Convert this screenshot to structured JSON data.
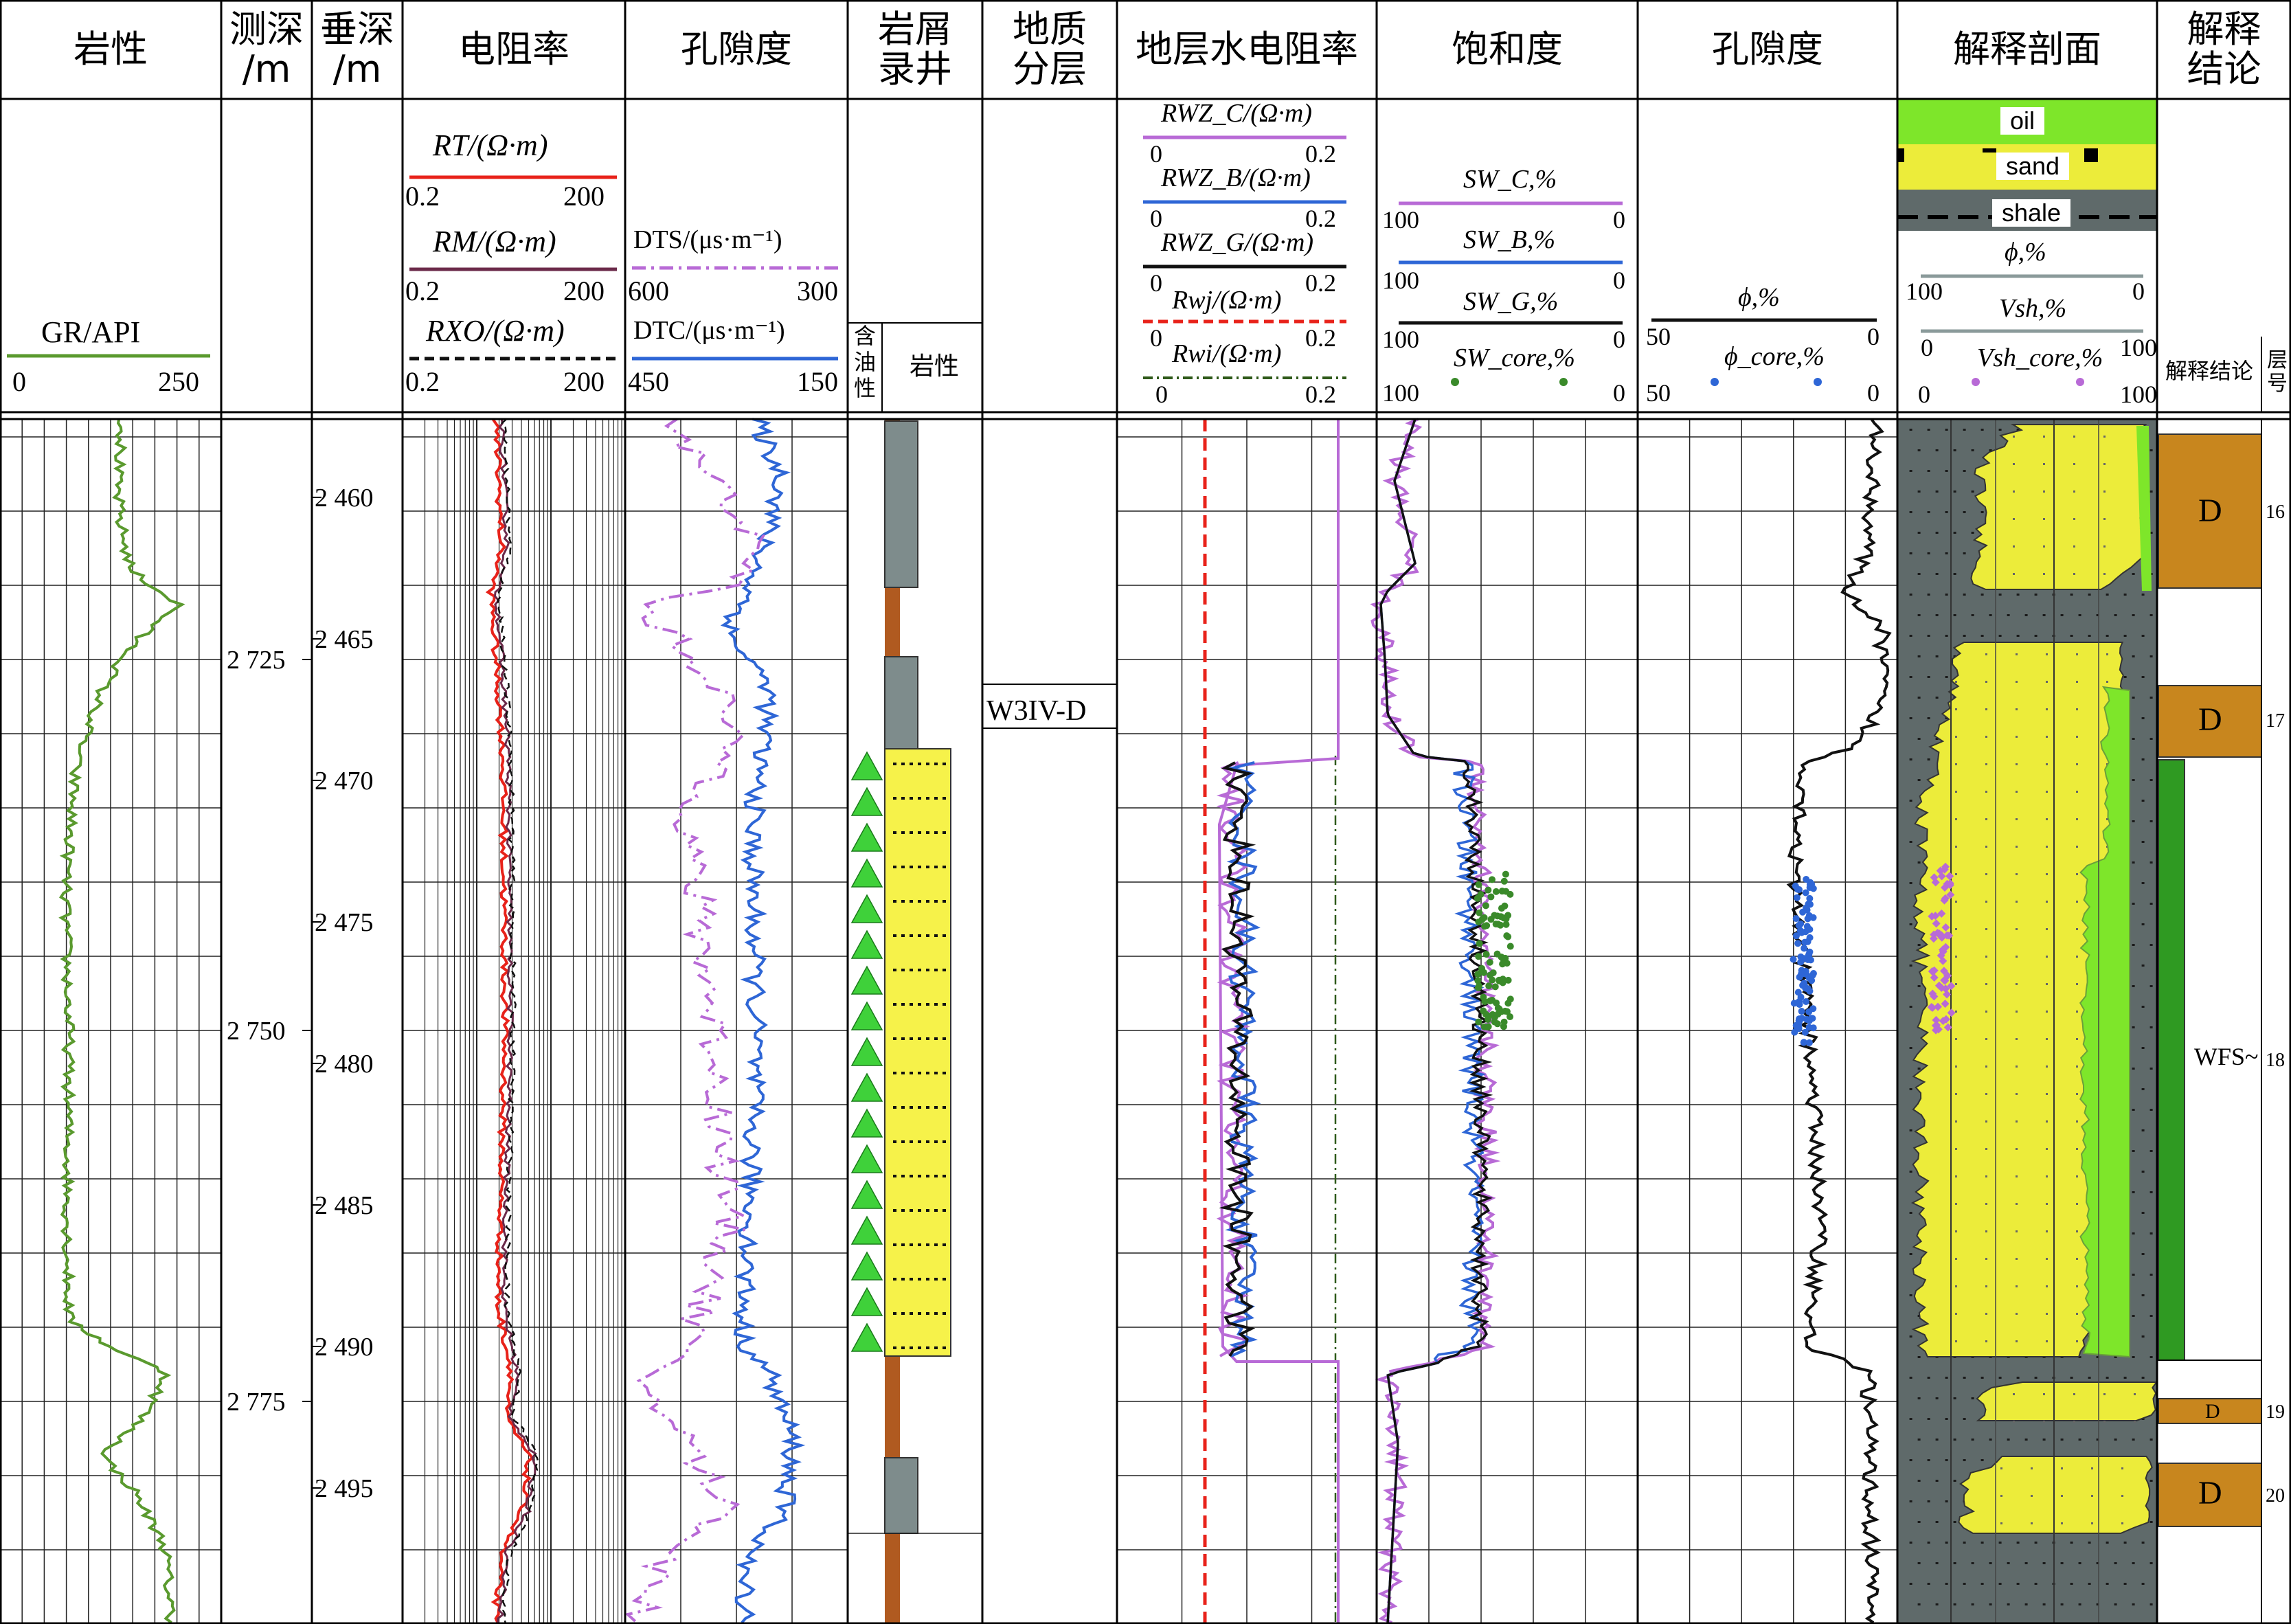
{
  "headers": {
    "lithology_gr": "岩性",
    "md": "测深\n/m",
    "tvd": "垂深\n/m",
    "resistivity": "电阻率",
    "porosity_sonic": "孔隙度",
    "cuttings": "岩屑\n录井",
    "geo_layer": "地质\n分层",
    "water_res": "地层水电阻率",
    "saturation": "饱和度",
    "porosity": "孔隙度",
    "profile": "解释剖面",
    "conclusion": "解释\n结论"
  },
  "curves": {
    "gr": {
      "label": "GR/API",
      "min": "0",
      "max": "250",
      "color": "#5a9a2e"
    },
    "rt": {
      "label": "RT/(Ω·m)",
      "min": "0.2",
      "max": "200",
      "color": "#e8221a"
    },
    "rm": {
      "label": "RM/(Ω·m)",
      "min": "0.2",
      "max": "200",
      "color": "#6b2a4a"
    },
    "rxo": {
      "label": "RXO/(Ω·m)",
      "min": "0.2",
      "max": "200",
      "color": "#111111"
    },
    "dts": {
      "label": "DTS/(μs·m⁻¹)",
      "min": "600",
      "max": "300",
      "color": "#b86ad6"
    },
    "dtc": {
      "label": "DTC/(μs·m⁻¹)",
      "min": "450",
      "max": "150",
      "color": "#2e66d6"
    },
    "rwz_c": {
      "label": "RWZ_C/(Ω·m)",
      "min": "0",
      "max": "0.2",
      "color": "#b86ad6"
    },
    "rwz_b": {
      "label": "RWZ_B/(Ω·m)",
      "min": "0",
      "max": "0.2",
      "color": "#2e66d6"
    },
    "rwz_g": {
      "label": "RWZ_G/(Ω·m)",
      "min": "0",
      "max": "0.2",
      "color": "#111111"
    },
    "rwj": {
      "label": "Rwj/(Ω·m)",
      "min": "0",
      "max": "0.2",
      "color": "#e8221a"
    },
    "rwi": {
      "label": "Rwi/(Ω·m)",
      "min": "0",
      "max": "0.2",
      "color": "#2f5a1a"
    },
    "sw_c": {
      "label": "SW_C,%",
      "min": "100",
      "max": "0",
      "color": "#b86ad6"
    },
    "sw_b": {
      "label": "SW_B,%",
      "min": "100",
      "max": "0",
      "color": "#2e66d6"
    },
    "sw_g": {
      "label": "SW_G,%",
      "min": "100",
      "max": "0",
      "color": "#111111"
    },
    "sw_core": {
      "label": "SW_core,%",
      "min": "100",
      "max": "0",
      "color": "#3a8a2a"
    },
    "phi": {
      "label": "ϕ,%",
      "min": "50",
      "max": "0",
      "color": "#111111"
    },
    "phi_core": {
      "label": "ϕ_core,%",
      "min": "50",
      "max": "0",
      "color": "#2e66d6"
    },
    "phi_p": {
      "label": "ϕ,%",
      "min": "100",
      "max": "0",
      "color": "#8a9a9a"
    },
    "vsh": {
      "label": "Vsh,%",
      "min": "0",
      "max": "100",
      "color": "#8a9a9a"
    },
    "vsh_core": {
      "label": "Vsh_core,%",
      "min": "0",
      "max": "100",
      "color": "#b86ad6"
    }
  },
  "cuttings_sub": {
    "oil": "含\n油\n性",
    "lith": "岩性"
  },
  "profile_legend": {
    "oil": "oil",
    "sand": "sand",
    "shale": "shale"
  },
  "conclusion_sub": {
    "conclusion": "解释结论",
    "layer_no": "层\n号"
  },
  "geo_layer_name": "W3IV-D",
  "md_ticks": [
    "2 725",
    "2 750",
    "2 775"
  ],
  "tvd_ticks": [
    "2 460",
    "2 465",
    "2 470",
    "2 475",
    "2 480",
    "2 485",
    "2 490",
    "2 495"
  ],
  "zones": [
    {
      "label": "D",
      "layer": "16",
      "color": "#c8861e"
    },
    {
      "label": "D",
      "layer": "17",
      "color": "#c8861e"
    },
    {
      "label": "WFS~",
      "layer": "18",
      "color": "#2f9a22"
    },
    {
      "label": "D",
      "layer": "19",
      "color": "#c8861e"
    },
    {
      "label": "D",
      "layer": "20",
      "color": "#c8861e"
    }
  ],
  "colors": {
    "oil_fill": "#7ee62a",
    "sand_fill": "#ecec3a",
    "shale_fill": "#5f6a6a",
    "tri_green": "#3fd13a"
  }
}
